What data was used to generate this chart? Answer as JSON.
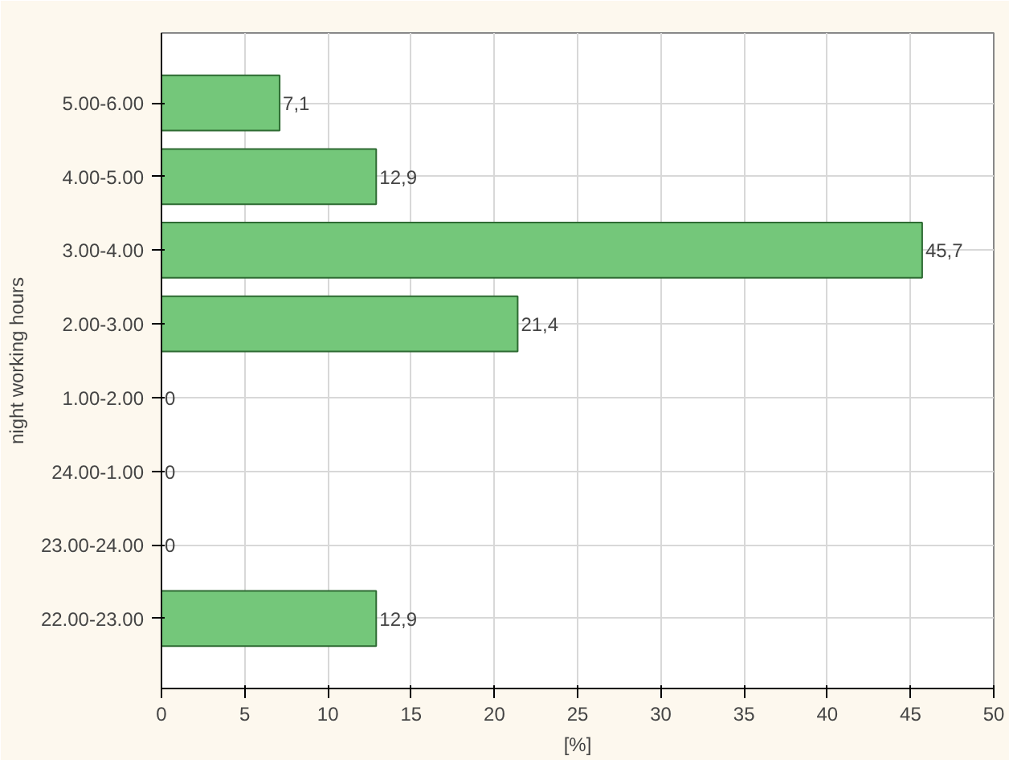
{
  "chart_data": {
    "type": "bar",
    "orientation": "horizontal",
    "xlabel": "[%]",
    "ylabel": "night working hours",
    "categories": [
      "5.00-6.00",
      "4.00-5.00",
      "3.00-4.00",
      "2.00-3.00",
      "1.00-2.00",
      "24.00-1.00",
      "23.00-24.00",
      "22.00-23.00"
    ],
    "values": [
      7.1,
      12.9,
      45.7,
      21.4,
      0,
      0,
      0,
      12.9
    ],
    "value_labels": [
      "7,1",
      "12,9",
      "45,7",
      "21,4",
      "0",
      "0",
      "0",
      "12,9"
    ],
    "color": "#74c77a",
    "xlim": [
      0,
      50
    ],
    "xticks": [
      0,
      5,
      10,
      15,
      20,
      25,
      30,
      35,
      40,
      45,
      50
    ],
    "grid": true
  }
}
